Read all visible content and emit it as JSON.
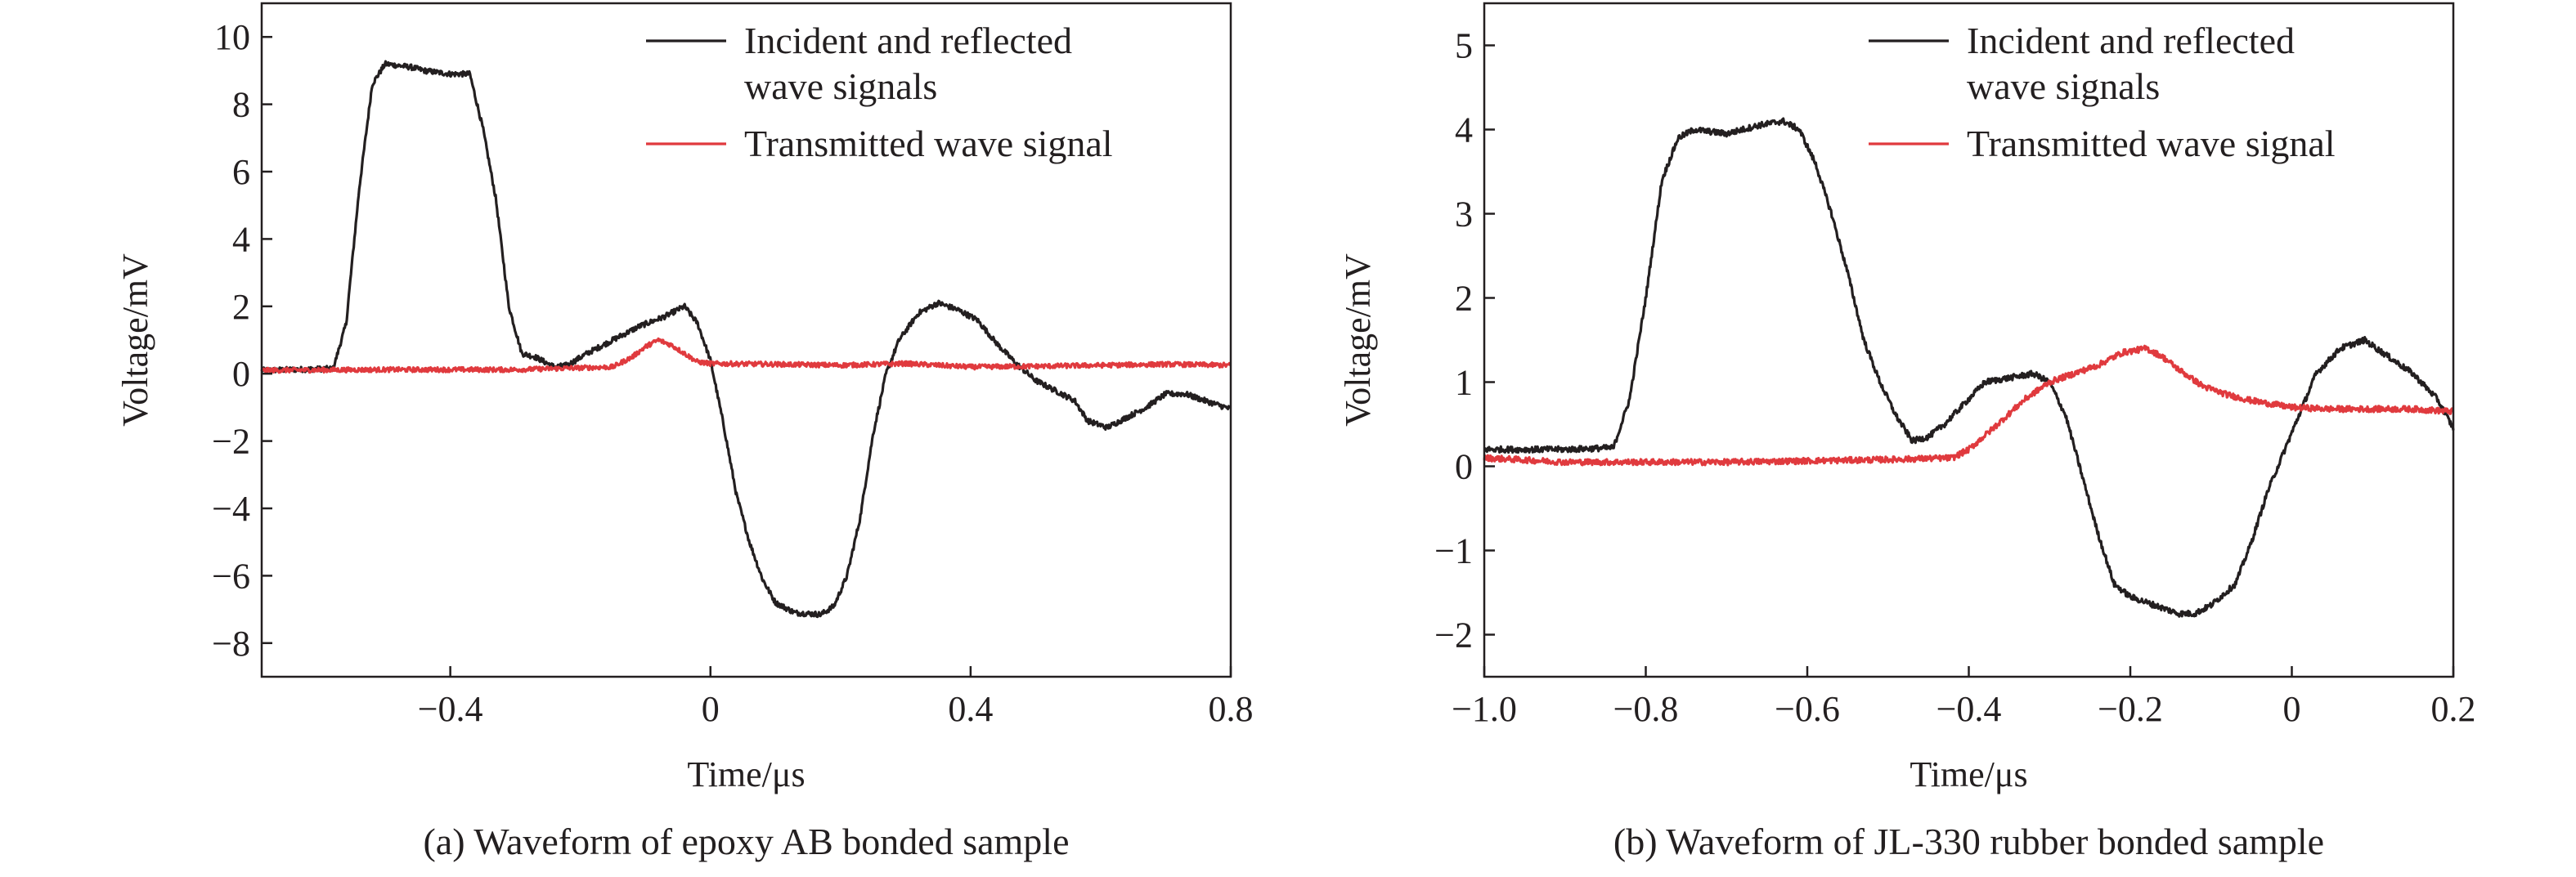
{
  "chart_data": [
    {
      "type": "line",
      "caption": "(a) Waveform of epoxy AB bonded sample",
      "xlabel": "Time/μs",
      "ylabel": "Voltage/mV",
      "xlim": [
        -0.69,
        0.8
      ],
      "ylim": [
        -9,
        11
      ],
      "xticks": [
        -0.4,
        0,
        0.4,
        0.8
      ],
      "xtick_labels": [
        "−0.4",
        "0",
        "0.4",
        "0.8"
      ],
      "yticks": [
        -8,
        -6,
        -4,
        -2,
        0,
        2,
        4,
        6,
        8,
        10
      ],
      "ytick_labels": [
        "−8",
        "−6",
        "−4",
        "−2",
        "0",
        "2",
        "4",
        "6",
        "8",
        "10"
      ],
      "legend_position": "top-right",
      "series": [
        {
          "name": "Incident and reflected wave signals",
          "legend_lines": [
            "Incident and reflected",
            "wave signals"
          ],
          "color": "#231f20",
          "noise": 0.08,
          "points": [
            [
              -0.69,
              0.1
            ],
            [
              -0.58,
              0.15
            ],
            [
              -0.56,
              1.5
            ],
            [
              -0.54,
              5.5
            ],
            [
              -0.52,
              8.6
            ],
            [
              -0.5,
              9.2
            ],
            [
              -0.46,
              9.1
            ],
            [
              -0.44,
              9.0
            ],
            [
              -0.4,
              8.9
            ],
            [
              -0.37,
              8.9
            ],
            [
              -0.35,
              7.3
            ],
            [
              -0.33,
              5.2
            ],
            [
              -0.31,
              2.0
            ],
            [
              -0.29,
              0.6
            ],
            [
              -0.27,
              0.5
            ],
            [
              -0.24,
              0.2
            ],
            [
              -0.22,
              0.25
            ],
            [
              -0.19,
              0.6
            ],
            [
              -0.15,
              1.0
            ],
            [
              -0.11,
              1.4
            ],
            [
              -0.07,
              1.7
            ],
            [
              -0.04,
              2.0
            ],
            [
              -0.02,
              1.5
            ],
            [
              0.0,
              0.4
            ],
            [
              0.02,
              -1.5
            ],
            [
              0.04,
              -3.6
            ],
            [
              0.06,
              -5.0
            ],
            [
              0.08,
              -6.1
            ],
            [
              0.1,
              -6.8
            ],
            [
              0.13,
              -7.1
            ],
            [
              0.17,
              -7.15
            ],
            [
              0.19,
              -6.9
            ],
            [
              0.21,
              -6.0
            ],
            [
              0.23,
              -4.3
            ],
            [
              0.25,
              -1.8
            ],
            [
              0.27,
              0.0
            ],
            [
              0.29,
              1.0
            ],
            [
              0.32,
              1.8
            ],
            [
              0.35,
              2.1
            ],
            [
              0.38,
              1.9
            ],
            [
              0.41,
              1.6
            ],
            [
              0.44,
              0.9
            ],
            [
              0.47,
              0.3
            ],
            [
              0.5,
              -0.2
            ],
            [
              0.53,
              -0.5
            ],
            [
              0.56,
              -0.8
            ],
            [
              0.58,
              -1.4
            ],
            [
              0.61,
              -1.6
            ],
            [
              0.64,
              -1.3
            ],
            [
              0.67,
              -1.0
            ],
            [
              0.7,
              -0.6
            ],
            [
              0.73,
              -0.6
            ],
            [
              0.76,
              -0.8
            ],
            [
              0.8,
              -1.05
            ]
          ]
        },
        {
          "name": "Transmitted wave signal",
          "legend_lines": [
            "Transmitted wave signal"
          ],
          "color": "#e03a3e",
          "noise": 0.07,
          "points": [
            [
              -0.69,
              0.1
            ],
            [
              -0.5,
              0.12
            ],
            [
              -0.3,
              0.12
            ],
            [
              -0.15,
              0.2
            ],
            [
              -0.12,
              0.5
            ],
            [
              -0.1,
              0.8
            ],
            [
              -0.08,
              1.0
            ],
            [
              -0.06,
              0.85
            ],
            [
              -0.04,
              0.6
            ],
            [
              -0.02,
              0.35
            ],
            [
              0.0,
              0.3
            ],
            [
              0.1,
              0.28
            ],
            [
              0.2,
              0.25
            ],
            [
              0.3,
              0.3
            ],
            [
              0.4,
              0.2
            ],
            [
              0.5,
              0.22
            ],
            [
              0.6,
              0.25
            ],
            [
              0.7,
              0.28
            ],
            [
              0.8,
              0.25
            ]
          ]
        }
      ]
    },
    {
      "type": "line",
      "caption": "(b) Waveform of JL-330 rubber bonded sample",
      "xlabel": "Time/μs",
      "ylabel": "Voltage/mV",
      "xlim": [
        -1.0,
        0.2
      ],
      "ylim": [
        -2.5,
        5.5
      ],
      "xticks": [
        -1.0,
        -0.8,
        -0.6,
        -0.4,
        -0.2,
        0,
        0.2
      ],
      "xtick_labels": [
        "−1.0",
        "−0.8",
        "−0.6",
        "−0.4",
        "−0.2",
        "0",
        "0.2"
      ],
      "yticks": [
        -2,
        -1,
        0,
        1,
        2,
        3,
        4,
        5
      ],
      "ytick_labels": [
        "−2",
        "−1",
        "0",
        "1",
        "2",
        "3",
        "4",
        "5"
      ],
      "legend_position": "top-right",
      "series": [
        {
          "name": "Incident and reflected wave signals",
          "legend_lines": [
            "Incident and reflected",
            "wave signals"
          ],
          "color": "#231f20",
          "noise": 0.035,
          "points": [
            [
              -1.0,
              0.2
            ],
            [
              -0.9,
              0.2
            ],
            [
              -0.84,
              0.22
            ],
            [
              -0.82,
              0.8
            ],
            [
              -0.8,
              2.0
            ],
            [
              -0.78,
              3.4
            ],
            [
              -0.76,
              3.9
            ],
            [
              -0.74,
              4.0
            ],
            [
              -0.7,
              3.95
            ],
            [
              -0.66,
              4.05
            ],
            [
              -0.63,
              4.1
            ],
            [
              -0.61,
              4.0
            ],
            [
              -0.59,
              3.6
            ],
            [
              -0.57,
              3.0
            ],
            [
              -0.55,
              2.3
            ],
            [
              -0.53,
              1.5
            ],
            [
              -0.51,
              1.0
            ],
            [
              -0.49,
              0.6
            ],
            [
              -0.47,
              0.3
            ],
            [
              -0.45,
              0.35
            ],
            [
              -0.43,
              0.5
            ],
            [
              -0.41,
              0.7
            ],
            [
              -0.38,
              1.0
            ],
            [
              -0.35,
              1.05
            ],
            [
              -0.32,
              1.1
            ],
            [
              -0.3,
              1.0
            ],
            [
              -0.28,
              0.6
            ],
            [
              -0.26,
              -0.1
            ],
            [
              -0.24,
              -0.8
            ],
            [
              -0.22,
              -1.4
            ],
            [
              -0.2,
              -1.55
            ],
            [
              -0.17,
              -1.65
            ],
            [
              -0.14,
              -1.75
            ],
            [
              -0.12,
              -1.75
            ],
            [
              -0.1,
              -1.65
            ],
            [
              -0.07,
              -1.4
            ],
            [
              -0.05,
              -0.9
            ],
            [
              -0.03,
              -0.3
            ],
            [
              0.0,
              0.4
            ],
            [
              0.03,
              1.1
            ],
            [
              0.06,
              1.4
            ],
            [
              0.09,
              1.5
            ],
            [
              0.12,
              1.3
            ],
            [
              0.15,
              1.1
            ],
            [
              0.18,
              0.8
            ],
            [
              0.2,
              0.45
            ]
          ]
        },
        {
          "name": "Transmitted wave signal",
          "legend_lines": [
            "Transmitted wave signal"
          ],
          "color": "#e03a3e",
          "noise": 0.035,
          "points": [
            [
              -1.0,
              0.1
            ],
            [
              -0.9,
              0.05
            ],
            [
              -0.7,
              0.05
            ],
            [
              -0.5,
              0.08
            ],
            [
              -0.42,
              0.1
            ],
            [
              -0.4,
              0.2
            ],
            [
              -0.37,
              0.45
            ],
            [
              -0.33,
              0.8
            ],
            [
              -0.3,
              1.0
            ],
            [
              -0.27,
              1.1
            ],
            [
              -0.24,
              1.2
            ],
            [
              -0.21,
              1.35
            ],
            [
              -0.18,
              1.4
            ],
            [
              -0.16,
              1.3
            ],
            [
              -0.14,
              1.15
            ],
            [
              -0.11,
              0.95
            ],
            [
              -0.08,
              0.85
            ],
            [
              -0.05,
              0.78
            ],
            [
              0.0,
              0.7
            ],
            [
              0.05,
              0.68
            ],
            [
              0.1,
              0.68
            ],
            [
              0.15,
              0.68
            ],
            [
              0.2,
              0.65
            ]
          ]
        }
      ]
    }
  ]
}
